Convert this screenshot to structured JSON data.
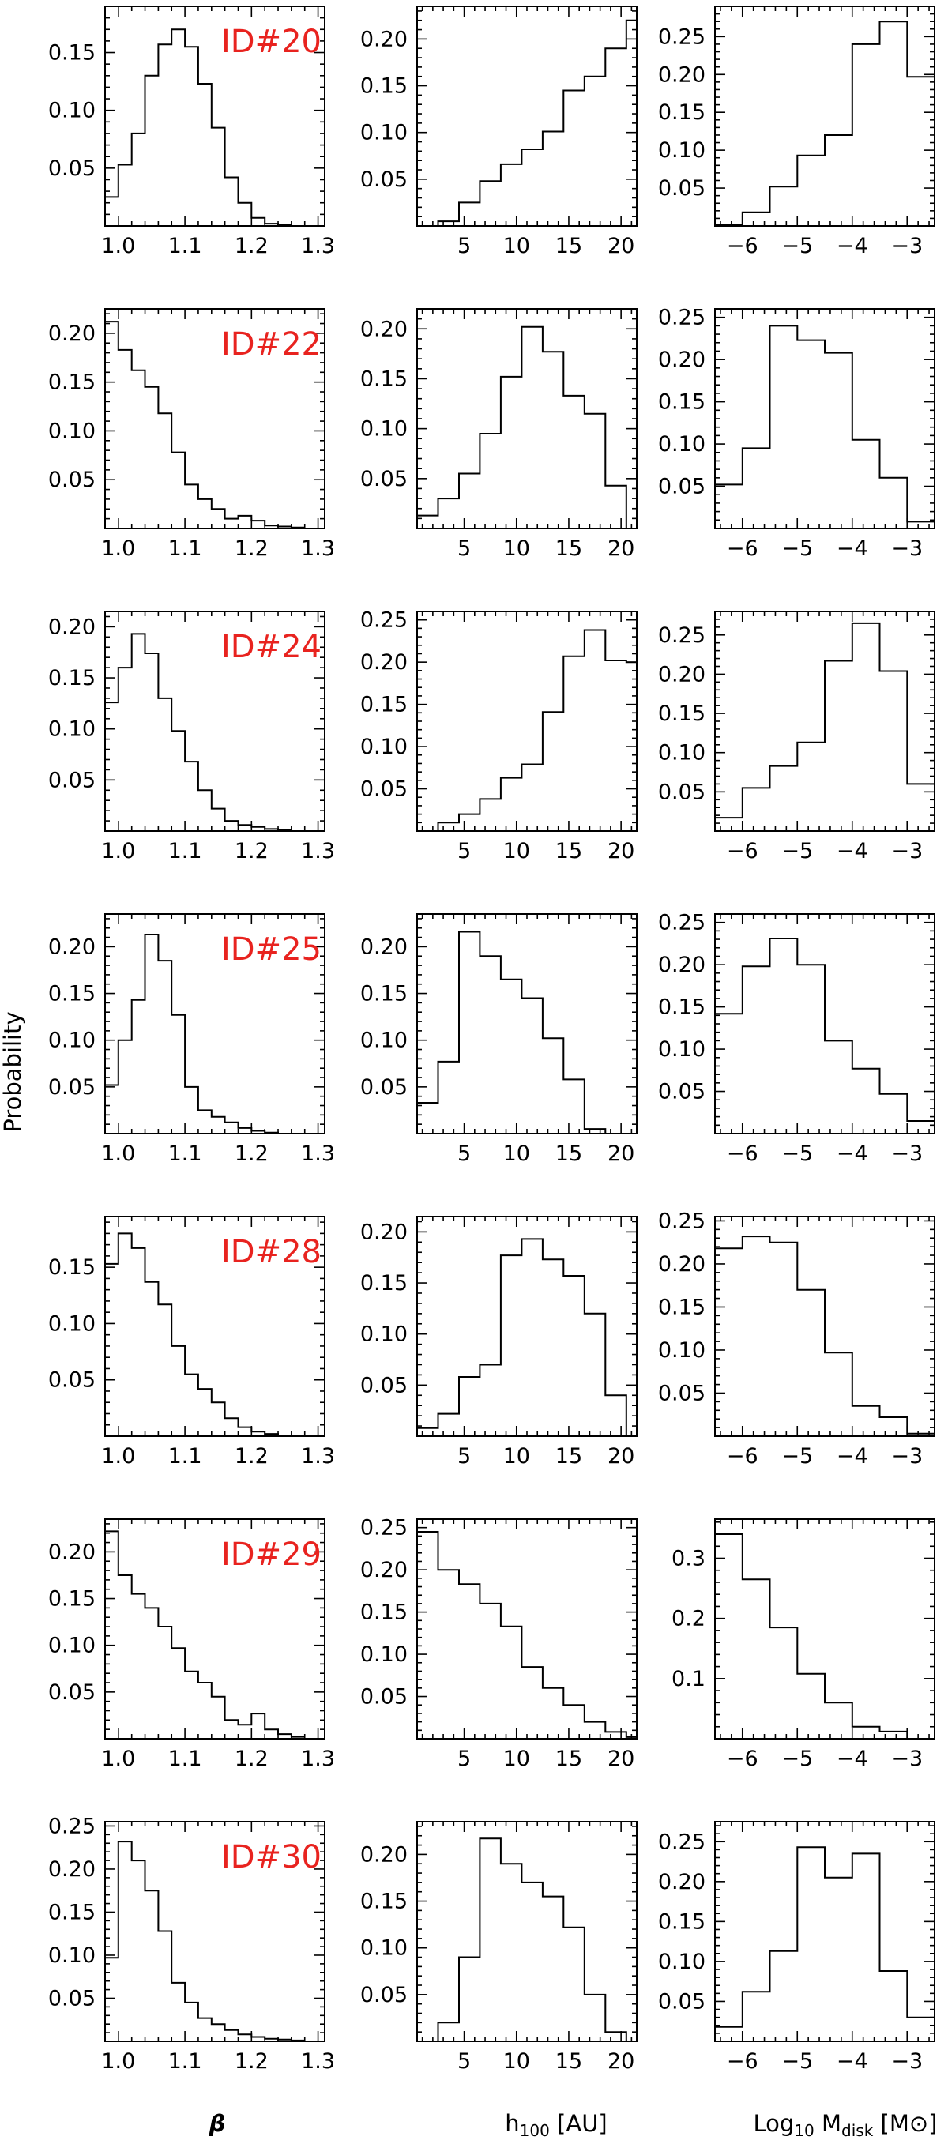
{
  "figure": {
    "ylabel": "Probability",
    "label_color": "#e8231f"
  },
  "column_labels": [
    {
      "key": "beta",
      "text": "β"
    },
    {
      "key": "h100",
      "main": "h",
      "sub": "100",
      "unit": " [AU]"
    },
    {
      "key": "mdisk",
      "main": "Log",
      "sub1": "10",
      "mid": " M",
      "sub2": "disk",
      "unit_open": " [M",
      "unit_sym": "⊙",
      "unit_close": "]"
    }
  ],
  "columns": [
    {
      "x_range": [
        0.98,
        1.31
      ],
      "x_ticks": [
        1.0,
        1.1,
        1.2,
        1.3
      ],
      "x_tick_labels": [
        "1.0",
        "1.1",
        "1.2",
        "1.3"
      ],
      "x_minor": 0.02,
      "bin_edges": [
        0.98,
        1.0,
        1.02,
        1.04,
        1.06,
        1.08,
        1.1,
        1.12,
        1.14,
        1.16,
        1.18,
        1.2,
        1.22,
        1.24,
        1.26,
        1.28,
        1.3
      ]
    },
    {
      "x_range": [
        0.5,
        21.5
      ],
      "x_ticks": [
        5,
        10,
        15,
        20
      ],
      "x_tick_labels": [
        "5",
        "10",
        "15",
        "20"
      ],
      "x_minor": 1,
      "bin_edges": [
        0.5,
        2.5,
        4.5,
        6.5,
        8.5,
        10.5,
        12.5,
        14.5,
        16.5,
        18.5,
        20.5,
        21.5
      ]
    },
    {
      "x_range": [
        -6.5,
        -2.5
      ],
      "x_ticks": [
        -6,
        -5,
        -4,
        -3
      ],
      "x_tick_labels": [
        "−6",
        "−5",
        "−4",
        "−3"
      ],
      "x_minor": 0.2,
      "bin_edges": [
        -6.5,
        -6.0,
        -5.5,
        -5.0,
        -4.5,
        -4.0,
        -3.5,
        -3.0,
        -2.5
      ]
    }
  ],
  "chart_data": [
    {
      "type": "bar",
      "id": "ID#20",
      "column": 0,
      "y_range": [
        0,
        0.19
      ],
      "y_ticks": [
        0.05,
        0.1,
        0.15
      ],
      "y_tick_labels": [
        "0.05",
        "0.10",
        "0.15"
      ],
      "values": [
        0.025,
        0.053,
        0.08,
        0.13,
        0.157,
        0.17,
        0.155,
        0.123,
        0.085,
        0.042,
        0.02,
        0.007,
        0.002,
        0.001,
        0.0
      ]
    },
    {
      "type": "bar",
      "id": "",
      "column": 1,
      "y_range": [
        0,
        0.235
      ],
      "y_ticks": [
        0.05,
        0.1,
        0.15,
        0.2
      ],
      "y_tick_labels": [
        "0.05",
        "0.10",
        "0.15",
        "0.20"
      ],
      "values": [
        0.0,
        0.005,
        0.025,
        0.048,
        0.066,
        0.082,
        0.101,
        0.145,
        0.16,
        0.19,
        0.22
      ]
    },
    {
      "type": "bar",
      "id": "",
      "column": 2,
      "y_range": [
        0,
        0.29
      ],
      "y_ticks": [
        0.05,
        0.1,
        0.15,
        0.2,
        0.25
      ],
      "y_tick_labels": [
        "0.05",
        "0.10",
        "0.15",
        "0.20",
        "0.25"
      ],
      "values": [
        0.002,
        0.018,
        0.052,
        0.093,
        0.12,
        0.24,
        0.27,
        0.197
      ]
    },
    {
      "type": "bar",
      "id": "ID#22",
      "column": 0,
      "y_range": [
        0,
        0.225
      ],
      "y_ticks": [
        0.05,
        0.1,
        0.15,
        0.2
      ],
      "y_tick_labels": [
        "0.05",
        "0.10",
        "0.15",
        "0.20"
      ],
      "values": [
        0.212,
        0.183,
        0.162,
        0.145,
        0.118,
        0.078,
        0.045,
        0.03,
        0.02,
        0.01,
        0.013,
        0.008,
        0.003,
        0.002,
        0.001
      ]
    },
    {
      "type": "bar",
      "id": "",
      "column": 1,
      "y_range": [
        0,
        0.22
      ],
      "y_ticks": [
        0.05,
        0.1,
        0.15,
        0.2
      ],
      "y_tick_labels": [
        "0.05",
        "0.10",
        "0.15",
        "0.20"
      ],
      "values": [
        0.013,
        0.03,
        0.055,
        0.095,
        0.152,
        0.202,
        0.177,
        0.133,
        0.115,
        0.043,
        0.0
      ]
    },
    {
      "type": "bar",
      "id": "",
      "column": 2,
      "y_range": [
        0,
        0.26
      ],
      "y_ticks": [
        0.05,
        0.1,
        0.15,
        0.2,
        0.25
      ],
      "y_tick_labels": [
        "0.05",
        "0.10",
        "0.15",
        "0.20",
        "0.25"
      ],
      "values": [
        0.052,
        0.095,
        0.24,
        0.223,
        0.208,
        0.105,
        0.06,
        0.008
      ]
    },
    {
      "type": "bar",
      "id": "ID#24",
      "column": 0,
      "y_range": [
        0,
        0.215
      ],
      "y_ticks": [
        0.05,
        0.1,
        0.15,
        0.2
      ],
      "y_tick_labels": [
        "0.05",
        "0.10",
        "0.15",
        "0.20"
      ],
      "values": [
        0.126,
        0.16,
        0.193,
        0.174,
        0.13,
        0.098,
        0.068,
        0.04,
        0.022,
        0.01,
        0.006,
        0.004,
        0.002,
        0.001,
        0.0
      ]
    },
    {
      "type": "bar",
      "id": "",
      "column": 1,
      "y_range": [
        0,
        0.26
      ],
      "y_ticks": [
        0.05,
        0.1,
        0.15,
        0.2,
        0.25
      ],
      "y_tick_labels": [
        "0.05",
        "0.10",
        "0.15",
        "0.20",
        "0.25"
      ],
      "values": [
        0.0,
        0.01,
        0.02,
        0.038,
        0.063,
        0.079,
        0.141,
        0.207,
        0.238,
        0.202,
        0.2
      ]
    },
    {
      "type": "bar",
      "id": "",
      "column": 2,
      "y_range": [
        0,
        0.28
      ],
      "y_ticks": [
        0.05,
        0.1,
        0.15,
        0.2,
        0.25
      ],
      "y_tick_labels": [
        "0.05",
        "0.10",
        "0.15",
        "0.20",
        "0.25"
      ],
      "values": [
        0.017,
        0.055,
        0.083,
        0.113,
        0.217,
        0.265,
        0.204,
        0.06
      ]
    },
    {
      "type": "bar",
      "id": "ID#25",
      "column": 0,
      "y_range": [
        0,
        0.235
      ],
      "y_ticks": [
        0.05,
        0.1,
        0.15,
        0.2
      ],
      "y_tick_labels": [
        "0.05",
        "0.10",
        "0.15",
        "0.20"
      ],
      "values": [
        0.052,
        0.1,
        0.143,
        0.213,
        0.185,
        0.127,
        0.05,
        0.025,
        0.018,
        0.012,
        0.006,
        0.003,
        0.001,
        0.0,
        0.0
      ]
    },
    {
      "type": "bar",
      "id": "",
      "column": 1,
      "y_range": [
        0,
        0.235
      ],
      "y_ticks": [
        0.05,
        0.1,
        0.15,
        0.2
      ],
      "y_tick_labels": [
        "0.05",
        "0.10",
        "0.15",
        "0.20"
      ],
      "values": [
        0.033,
        0.077,
        0.216,
        0.19,
        0.165,
        0.145,
        0.102,
        0.058,
        0.005,
        0.0,
        0.0
      ]
    },
    {
      "type": "bar",
      "id": "",
      "column": 2,
      "y_range": [
        0,
        0.26
      ],
      "y_ticks": [
        0.05,
        0.1,
        0.15,
        0.2,
        0.25
      ],
      "y_tick_labels": [
        "0.05",
        "0.10",
        "0.15",
        "0.20",
        "0.25"
      ],
      "values": [
        0.142,
        0.198,
        0.231,
        0.2,
        0.11,
        0.077,
        0.047,
        0.015
      ]
    },
    {
      "type": "bar",
      "id": "ID#28",
      "column": 0,
      "y_range": [
        0,
        0.195
      ],
      "y_ticks": [
        0.05,
        0.1,
        0.15
      ],
      "y_tick_labels": [
        "0.05",
        "0.10",
        "0.15"
      ],
      "values": [
        0.153,
        0.18,
        0.167,
        0.137,
        0.117,
        0.08,
        0.055,
        0.042,
        0.03,
        0.016,
        0.008,
        0.004,
        0.002,
        0.0,
        0.0
      ]
    },
    {
      "type": "bar",
      "id": "",
      "column": 1,
      "y_range": [
        0,
        0.215
      ],
      "y_ticks": [
        0.05,
        0.1,
        0.15,
        0.2
      ],
      "y_tick_labels": [
        "0.05",
        "0.10",
        "0.15",
        "0.20"
      ],
      "values": [
        0.008,
        0.022,
        0.058,
        0.07,
        0.177,
        0.193,
        0.173,
        0.157,
        0.12,
        0.04,
        0.0
      ]
    },
    {
      "type": "bar",
      "id": "",
      "column": 2,
      "y_range": [
        0,
        0.255
      ],
      "y_ticks": [
        0.05,
        0.1,
        0.15,
        0.2,
        0.25
      ],
      "y_tick_labels": [
        "0.05",
        "0.10",
        "0.15",
        "0.20",
        "0.25"
      ],
      "values": [
        0.218,
        0.232,
        0.225,
        0.17,
        0.097,
        0.035,
        0.022,
        0.003
      ]
    },
    {
      "type": "bar",
      "id": "ID#29",
      "column": 0,
      "y_range": [
        0,
        0.235
      ],
      "y_ticks": [
        0.05,
        0.1,
        0.15,
        0.2
      ],
      "y_tick_labels": [
        "0.05",
        "0.10",
        "0.15",
        "0.20"
      ],
      "values": [
        0.222,
        0.175,
        0.155,
        0.14,
        0.12,
        0.097,
        0.072,
        0.06,
        0.045,
        0.02,
        0.015,
        0.027,
        0.01,
        0.005,
        0.002
      ]
    },
    {
      "type": "bar",
      "id": "",
      "column": 1,
      "y_range": [
        0,
        0.26
      ],
      "y_ticks": [
        0.05,
        0.1,
        0.15,
        0.2,
        0.25
      ],
      "y_tick_labels": [
        "0.05",
        "0.10",
        "0.15",
        "0.20",
        "0.25"
      ],
      "values": [
        0.245,
        0.2,
        0.183,
        0.16,
        0.133,
        0.085,
        0.06,
        0.04,
        0.02,
        0.008,
        0.002
      ]
    },
    {
      "type": "bar",
      "id": "",
      "column": 2,
      "y_range": [
        0,
        0.365
      ],
      "y_ticks": [
        0.1,
        0.2,
        0.3
      ],
      "y_tick_labels": [
        "0.1",
        "0.2",
        "0.3"
      ],
      "values": [
        0.34,
        0.265,
        0.185,
        0.108,
        0.06,
        0.02,
        0.012,
        0.0
      ]
    },
    {
      "type": "bar",
      "id": "ID#30",
      "column": 0,
      "y_range": [
        0,
        0.255
      ],
      "y_ticks": [
        0.05,
        0.1,
        0.15,
        0.2,
        0.25
      ],
      "y_tick_labels": [
        "0.05",
        "0.10",
        "0.15",
        "0.20",
        "0.25"
      ],
      "values": [
        0.097,
        0.232,
        0.21,
        0.175,
        0.128,
        0.068,
        0.045,
        0.027,
        0.02,
        0.013,
        0.008,
        0.005,
        0.003,
        0.002,
        0.001
      ]
    },
    {
      "type": "bar",
      "id": "",
      "column": 1,
      "y_range": [
        0,
        0.235
      ],
      "y_ticks": [
        0.05,
        0.1,
        0.15,
        0.2
      ],
      "y_tick_labels": [
        "0.05",
        "0.10",
        "0.15",
        "0.20"
      ],
      "values": [
        0.0,
        0.02,
        0.09,
        0.217,
        0.19,
        0.17,
        0.155,
        0.122,
        0.05,
        0.01,
        0.0
      ]
    },
    {
      "type": "bar",
      "id": "",
      "column": 2,
      "y_range": [
        0,
        0.275
      ],
      "y_ticks": [
        0.05,
        0.1,
        0.15,
        0.2,
        0.25
      ],
      "y_tick_labels": [
        "0.05",
        "0.10",
        "0.15",
        "0.20",
        "0.25"
      ],
      "values": [
        0.018,
        0.062,
        0.113,
        0.243,
        0.205,
        0.235,
        0.088,
        0.03
      ]
    }
  ]
}
